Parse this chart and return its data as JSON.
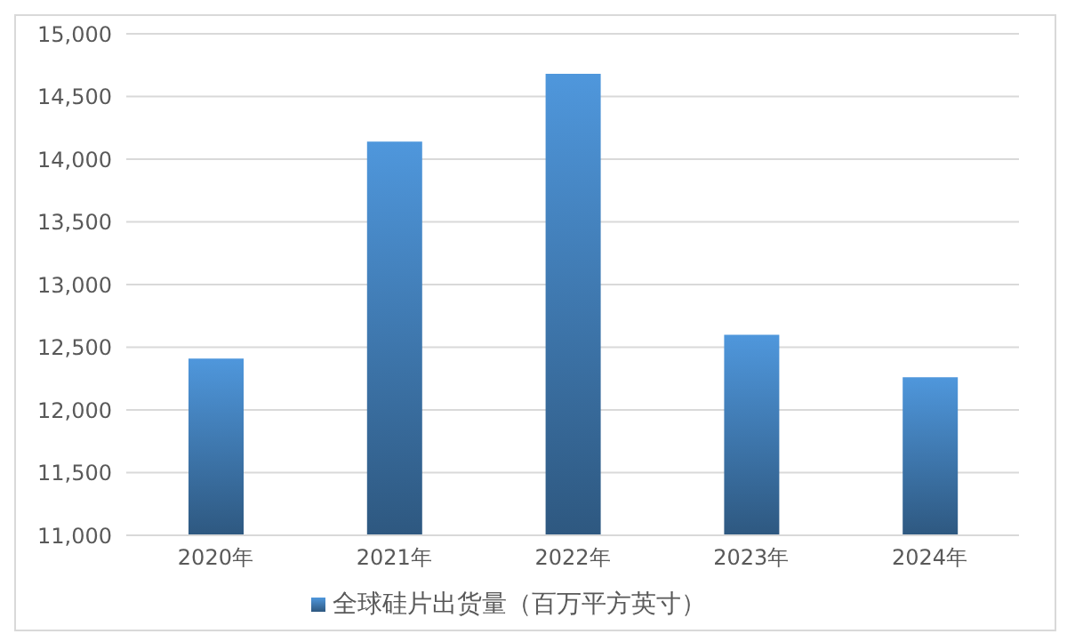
{
  "chart_data": {
    "type": "bar",
    "categories": [
      "2020年",
      "2021年",
      "2022年",
      "2023年",
      "2024年"
    ],
    "series": [
      {
        "name": "全球硅片出货量（百万平方英寸）",
        "color": "#4f97dc",
        "values": [
          12410,
          14140,
          14680,
          12600,
          12260
        ]
      }
    ],
    "ylim": [
      11000,
      15000
    ],
    "yticks": [
      {
        "value": 11000,
        "label": "11,000"
      },
      {
        "value": 11500,
        "label": "11,500"
      },
      {
        "value": 12000,
        "label": "12,000"
      },
      {
        "value": 12500,
        "label": "12,500"
      },
      {
        "value": 13000,
        "label": "13,000"
      },
      {
        "value": 13500,
        "label": "13,500"
      },
      {
        "value": 14000,
        "label": "14,000"
      },
      {
        "value": 14500,
        "label": "14,500"
      },
      {
        "value": 15000,
        "label": "15,000"
      }
    ],
    "grid": "y",
    "legend": "bottom"
  }
}
